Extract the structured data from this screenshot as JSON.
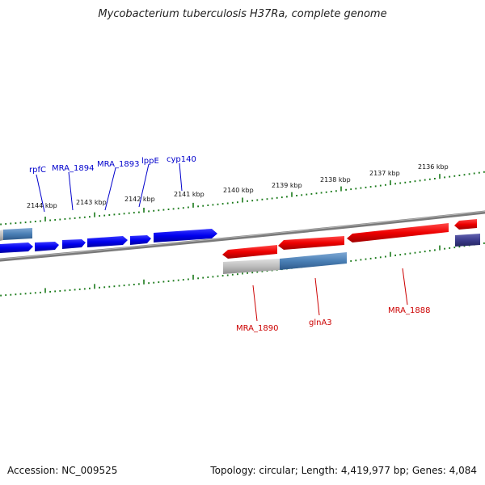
{
  "title": "Mycobacterium tuberculosis H37Ra, complete genome",
  "footer": {
    "accession": "Accession: NC_009525",
    "summary": "Topology: circular; Length: 4,419,977 bp; Genes: 4,084"
  },
  "ticks": [
    "2144 kbp",
    "2143 kbp",
    "2142 kbp",
    "2141 kbp",
    "2140 kbp",
    "2139 kbp",
    "2138 kbp",
    "2137 kbp",
    "2136 kbp"
  ],
  "genes_forward": [
    "rpfC",
    "MRA_1894",
    "MRA_1893",
    "lppE",
    "cyp140"
  ],
  "genes_reverse": [
    "MRA_1890",
    "glnA3",
    "MRA_1888"
  ],
  "colors": {
    "forward": "#0000ee",
    "reverse": "#ee0000",
    "backbone": "#808080",
    "ticks": "#1a7a1a",
    "steelblue": "#4a7fb5",
    "grey": "#bdbdbd",
    "navy": "#3c3c8c"
  }
}
